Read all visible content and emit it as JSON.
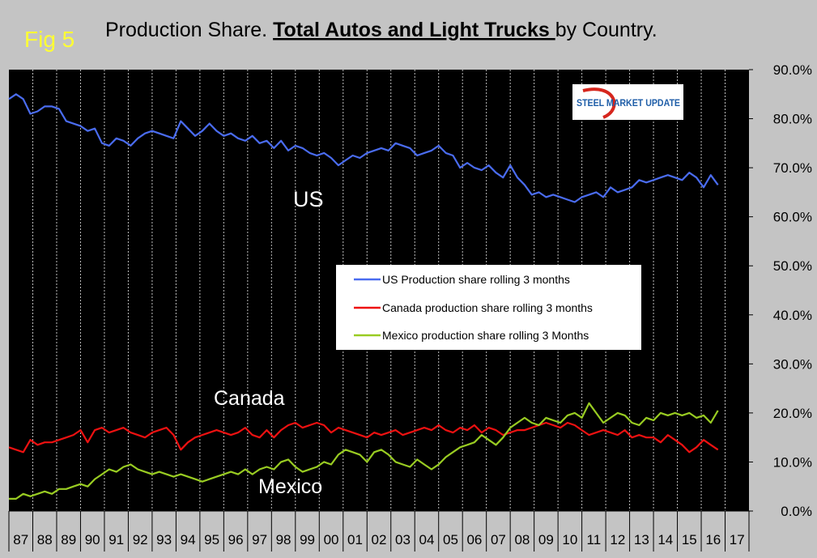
{
  "figure_label": "Fig 5",
  "title_prefix": "Production Share. ",
  "title_emphasis": "Total Autos and Light Trucks ",
  "title_suffix": "by Country.",
  "logo_text": "STEEL MARKET UPDATE",
  "annotations": [
    {
      "text": "US",
      "series": "us"
    },
    {
      "text": "Canada",
      "series": "canada"
    },
    {
      "text": "Mexico",
      "series": "mexico"
    }
  ],
  "colors": {
    "background": "#c4c4c4",
    "plot_area": "#000000",
    "us": "#4a6cf0",
    "canada": "#ee1111",
    "mexico": "#99cc22",
    "text": "#000000",
    "annotation_text": "#ffffff",
    "fig_label": "#ffff33",
    "logo_blue": "#1f5ea8",
    "logo_red": "#d6261d"
  },
  "chart_data": {
    "type": "line",
    "title": "Production Share. Total Autos and Light Trucks by Country.",
    "xlabel": "",
    "ylabel": "",
    "categories": [
      "87",
      "88",
      "89",
      "90",
      "91",
      "92",
      "93",
      "94",
      "95",
      "96",
      "97",
      "98",
      "99",
      "00",
      "01",
      "02",
      "03",
      "04",
      "05",
      "06",
      "07",
      "08",
      "09",
      "10",
      "11",
      "12",
      "13",
      "14",
      "15",
      "16",
      "17"
    ],
    "y_ticks": [
      "0.0%",
      "10.0%",
      "20.0%",
      "30.0%",
      "40.0%",
      "50.0%",
      "60.0%",
      "70.0%",
      "80.0%",
      "90.0%"
    ],
    "ylim": [
      0,
      90
    ],
    "xlim": [
      1987,
      2018
    ],
    "grid": "vertical",
    "legend_position": "center-right",
    "series": [
      {
        "name": "US Production share rolling 3 months",
        "key": "us",
        "x": [
          1987.0,
          1987.3,
          1987.6,
          1987.9,
          1988.2,
          1988.5,
          1988.8,
          1989.1,
          1989.4,
          1989.7,
          1990.0,
          1990.3,
          1990.6,
          1990.9,
          1991.2,
          1991.5,
          1991.8,
          1992.1,
          1992.4,
          1992.7,
          1993.0,
          1993.3,
          1993.6,
          1993.9,
          1994.2,
          1994.5,
          1994.8,
          1995.1,
          1995.4,
          1995.7,
          1996.0,
          1996.3,
          1996.6,
          1996.9,
          1997.2,
          1997.5,
          1997.8,
          1998.1,
          1998.4,
          1998.7,
          1999.0,
          1999.3,
          1999.6,
          1999.9,
          2000.2,
          2000.5,
          2000.8,
          2001.1,
          2001.4,
          2001.7,
          2002.0,
          2002.3,
          2002.6,
          2002.9,
          2003.2,
          2003.5,
          2003.8,
          2004.1,
          2004.4,
          2004.7,
          2005.0,
          2005.3,
          2005.6,
          2005.9,
          2006.2,
          2006.5,
          2006.8,
          2007.1,
          2007.4,
          2007.7,
          2008.0,
          2008.3,
          2008.6,
          2008.9,
          2009.2,
          2009.5,
          2009.8,
          2010.1,
          2010.4,
          2010.7,
          2011.0,
          2011.3,
          2011.6,
          2011.9,
          2012.2,
          2012.5,
          2012.8,
          2013.1,
          2013.4,
          2013.7,
          2014.0,
          2014.3,
          2014.6,
          2014.9,
          2015.2,
          2015.5,
          2015.8,
          2016.1,
          2016.4,
          2016.7
        ],
        "y": [
          84.0,
          85.0,
          84.0,
          81.0,
          81.5,
          82.5,
          82.5,
          82.0,
          79.5,
          79.0,
          78.5,
          77.5,
          78.0,
          75.0,
          74.5,
          76.0,
          75.5,
          74.5,
          76.0,
          77.0,
          77.5,
          77.0,
          76.5,
          76.0,
          79.5,
          78.0,
          76.5,
          77.5,
          79.0,
          77.5,
          76.5,
          77.0,
          76.0,
          75.5,
          76.5,
          75.0,
          75.5,
          74.0,
          75.5,
          73.5,
          74.5,
          74.0,
          73.0,
          72.5,
          73.0,
          72.0,
          70.5,
          71.5,
          72.5,
          72.0,
          73.0,
          73.5,
          74.0,
          73.5,
          75.0,
          74.5,
          74.0,
          72.5,
          73.0,
          73.5,
          74.5,
          73.0,
          72.5,
          70.0,
          71.0,
          70.0,
          69.5,
          70.5,
          69.0,
          68.0,
          70.5,
          68.0,
          66.5,
          64.5,
          65.0,
          64.0,
          64.5,
          64.0,
          63.5,
          63.0,
          64.0,
          64.5,
          65.0,
          64.0,
          66.0,
          65.0,
          65.5,
          66.0,
          67.5,
          67.0,
          67.5,
          68.0,
          68.5,
          68.0,
          67.5,
          69.0,
          68.0,
          66.0,
          68.5,
          66.5
        ]
      },
      {
        "name": "Canada production share rolling 3 months",
        "key": "canada",
        "x": [
          1987.0,
          1987.3,
          1987.6,
          1987.9,
          1988.2,
          1988.5,
          1988.8,
          1989.1,
          1989.4,
          1989.7,
          1990.0,
          1990.3,
          1990.6,
          1990.9,
          1991.2,
          1991.5,
          1991.8,
          1992.1,
          1992.4,
          1992.7,
          1993.0,
          1993.3,
          1993.6,
          1993.9,
          1994.2,
          1994.5,
          1994.8,
          1995.1,
          1995.4,
          1995.7,
          1996.0,
          1996.3,
          1996.6,
          1996.9,
          1997.2,
          1997.5,
          1997.8,
          1998.1,
          1998.4,
          1998.7,
          1999.0,
          1999.3,
          1999.6,
          1999.9,
          2000.2,
          2000.5,
          2000.8,
          2001.1,
          2001.4,
          2001.7,
          2002.0,
          2002.3,
          2002.6,
          2002.9,
          2003.2,
          2003.5,
          2003.8,
          2004.1,
          2004.4,
          2004.7,
          2005.0,
          2005.3,
          2005.6,
          2005.9,
          2006.2,
          2006.5,
          2006.8,
          2007.1,
          2007.4,
          2007.7,
          2008.0,
          2008.3,
          2008.6,
          2008.9,
          2009.2,
          2009.5,
          2009.8,
          2010.1,
          2010.4,
          2010.7,
          2011.0,
          2011.3,
          2011.6,
          2011.9,
          2012.2,
          2012.5,
          2012.8,
          2013.1,
          2013.4,
          2013.7,
          2014.0,
          2014.3,
          2014.6,
          2014.9,
          2015.2,
          2015.5,
          2015.8,
          2016.1,
          2016.4,
          2016.7
        ],
        "y": [
          13.0,
          12.5,
          12.0,
          14.5,
          13.5,
          14.0,
          14.0,
          14.5,
          15.0,
          15.5,
          16.5,
          14.0,
          16.5,
          17.0,
          16.0,
          16.5,
          17.0,
          16.0,
          15.5,
          15.0,
          16.0,
          16.5,
          17.0,
          15.5,
          12.5,
          14.0,
          15.0,
          15.5,
          16.0,
          16.5,
          16.0,
          15.5,
          16.0,
          17.0,
          15.5,
          15.0,
          16.5,
          15.0,
          16.5,
          17.5,
          18.0,
          17.0,
          17.5,
          18.0,
          17.5,
          16.0,
          17.0,
          16.5,
          16.0,
          15.5,
          15.0,
          16.0,
          15.5,
          16.0,
          16.5,
          15.5,
          16.0,
          16.5,
          17.0,
          16.5,
          17.5,
          16.5,
          16.0,
          17.0,
          16.5,
          17.5,
          16.0,
          17.0,
          16.5,
          15.5,
          16.0,
          16.5,
          16.5,
          17.0,
          17.5,
          18.0,
          17.5,
          17.0,
          18.0,
          17.5,
          16.5,
          15.5,
          16.0,
          16.5,
          16.0,
          15.5,
          16.5,
          15.0,
          15.5,
          15.0,
          15.0,
          14.0,
          15.5,
          14.5,
          13.5,
          12.0,
          13.0,
          14.5,
          13.5,
          12.5
        ]
      },
      {
        "name": "Mexico production share rolling 3 Months",
        "key": "mexico",
        "x": [
          1987.0,
          1987.3,
          1987.6,
          1987.9,
          1988.2,
          1988.5,
          1988.8,
          1989.1,
          1989.4,
          1989.7,
          1990.0,
          1990.3,
          1990.6,
          1990.9,
          1991.2,
          1991.5,
          1991.8,
          1992.1,
          1992.4,
          1992.7,
          1993.0,
          1993.3,
          1993.6,
          1993.9,
          1994.2,
          1994.5,
          1994.8,
          1995.1,
          1995.4,
          1995.7,
          1996.0,
          1996.3,
          1996.6,
          1996.9,
          1997.2,
          1997.5,
          1997.8,
          1998.1,
          1998.4,
          1998.7,
          1999.0,
          1999.3,
          1999.6,
          1999.9,
          2000.2,
          2000.5,
          2000.8,
          2001.1,
          2001.4,
          2001.7,
          2002.0,
          2002.3,
          2002.6,
          2002.9,
          2003.2,
          2003.5,
          2003.8,
          2004.1,
          2004.4,
          2004.7,
          2005.0,
          2005.3,
          2005.6,
          2005.9,
          2006.2,
          2006.5,
          2006.8,
          2007.1,
          2007.4,
          2007.7,
          2008.0,
          2008.3,
          2008.6,
          2008.9,
          2009.2,
          2009.5,
          2009.8,
          2010.1,
          2010.4,
          2010.7,
          2011.0,
          2011.3,
          2011.6,
          2011.9,
          2012.2,
          2012.5,
          2012.8,
          2013.1,
          2013.4,
          2013.7,
          2014.0,
          2014.3,
          2014.6,
          2014.9,
          2015.2,
          2015.5,
          2015.8,
          2016.1,
          2016.4,
          2016.7
        ],
        "y": [
          2.5,
          2.5,
          3.5,
          3.0,
          3.5,
          4.0,
          3.5,
          4.5,
          4.5,
          5.0,
          5.5,
          5.0,
          6.5,
          7.5,
          8.5,
          8.0,
          9.0,
          9.5,
          8.5,
          8.0,
          7.5,
          8.0,
          7.5,
          7.0,
          7.5,
          7.0,
          6.5,
          6.0,
          6.5,
          7.0,
          7.5,
          8.0,
          7.5,
          8.5,
          7.5,
          8.5,
          9.0,
          8.5,
          10.0,
          10.5,
          9.0,
          8.0,
          8.5,
          9.0,
          10.0,
          9.5,
          11.5,
          12.5,
          12.0,
          11.5,
          10.0,
          12.0,
          12.5,
          11.5,
          10.0,
          9.5,
          9.0,
          10.5,
          9.5,
          8.5,
          9.5,
          11.0,
          12.0,
          13.0,
          13.5,
          14.0,
          15.5,
          14.5,
          13.5,
          15.0,
          17.0,
          18.0,
          19.0,
          18.0,
          17.5,
          19.0,
          18.5,
          18.0,
          19.5,
          20.0,
          19.0,
          22.0,
          20.0,
          18.0,
          19.0,
          20.0,
          19.5,
          18.0,
          17.5,
          19.0,
          18.5,
          20.0,
          19.5,
          20.0,
          19.5,
          20.0,
          19.0,
          19.5,
          18.0,
          20.5
        ]
      }
    ]
  }
}
